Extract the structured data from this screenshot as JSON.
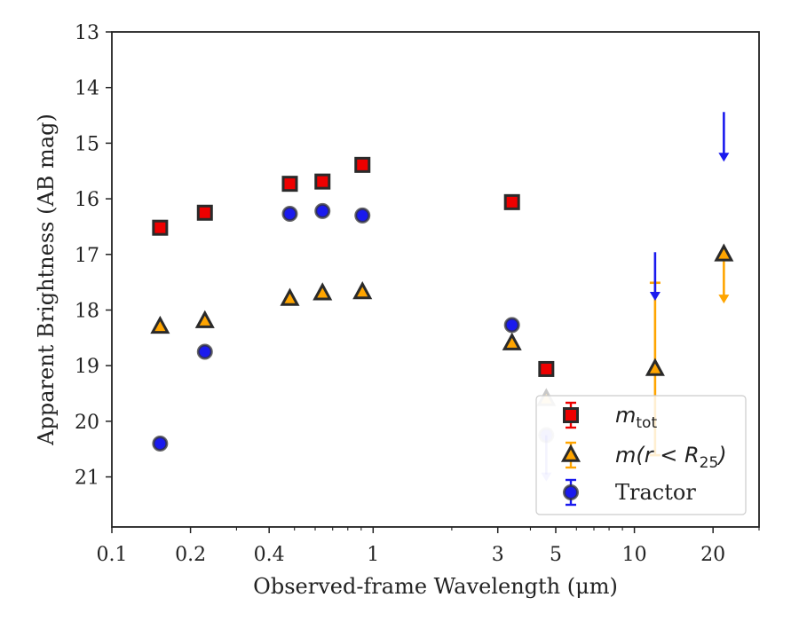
{
  "chart_data": {
    "type": "scatter",
    "title": "",
    "xlabel": "Observed-frame Wavelength (μm)",
    "ylabel": "Apparent Brightness (AB mag)",
    "xscale": "log",
    "xlim": [
      0.1,
      30
    ],
    "ylim": [
      21.9,
      13
    ],
    "y_inverted": true,
    "x_ticks": [
      {
        "value": 0.1,
        "label": "0.1"
      },
      {
        "value": 0.2,
        "label": "0.2"
      },
      {
        "value": 0.4,
        "label": "0.4"
      },
      {
        "value": 1,
        "label": "1"
      },
      {
        "value": 3,
        "label": "3"
      },
      {
        "value": 5,
        "label": "5"
      },
      {
        "value": 10,
        "label": "10"
      },
      {
        "value": 20,
        "label": "20"
      }
    ],
    "y_ticks": [
      13,
      14,
      15,
      16,
      17,
      18,
      19,
      20,
      21
    ],
    "grid": false,
    "legend_position": "lower-right",
    "series": [
      {
        "name": "m_tot",
        "legend_label": {
          "base": "m",
          "sub": "tot",
          "post": ""
        },
        "marker": "square",
        "color": "#ee0000",
        "points": [
          {
            "x": 0.153,
            "y": 16.52
          },
          {
            "x": 0.227,
            "y": 16.25
          },
          {
            "x": 0.48,
            "y": 15.73
          },
          {
            "x": 0.64,
            "y": 15.69
          },
          {
            "x": 0.91,
            "y": 15.39
          },
          {
            "x": 3.4,
            "y": 16.06
          },
          {
            "x": 4.6,
            "y": 19.06
          }
        ],
        "upper_limits": []
      },
      {
        "name": "m(r < R25)",
        "legend_label": {
          "base": "m(r < R",
          "sub": "25",
          "post": ")"
        },
        "marker": "triangle",
        "color": "#ffa500",
        "points": [
          {
            "x": 0.153,
            "y": 18.3
          },
          {
            "x": 0.227,
            "y": 18.2
          },
          {
            "x": 0.48,
            "y": 17.8
          },
          {
            "x": 0.64,
            "y": 17.7
          },
          {
            "x": 0.91,
            "y": 17.68
          },
          {
            "x": 3.4,
            "y": 18.6
          },
          {
            "x": 4.6,
            "y": 19.6
          },
          {
            "x": 12,
            "y": 19.06,
            "err_low": 1.55,
            "err_high": 1.55
          }
        ],
        "upper_limits": [
          {
            "x": 22,
            "y": 17.0,
            "arrow_to": 17.85
          }
        ]
      },
      {
        "name": "Tractor",
        "legend_label": {
          "base": "Tractor",
          "sub": "",
          "post": ""
        },
        "marker": "circle",
        "color": "#1a1aee",
        "points": [
          {
            "x": 0.153,
            "y": 20.4
          },
          {
            "x": 0.227,
            "y": 18.75
          },
          {
            "x": 0.48,
            "y": 16.27
          },
          {
            "x": 0.64,
            "y": 16.22
          },
          {
            "x": 0.91,
            "y": 16.3
          },
          {
            "x": 3.4,
            "y": 18.27
          },
          {
            "x": 4.6,
            "y": 20.25
          }
        ],
        "upper_limits": [
          {
            "x": 4.6,
            "y": 20.25,
            "arrow_to": 21.05
          },
          {
            "x": 12,
            "y": 16.96,
            "arrow_to": 17.8
          },
          {
            "x": 22,
            "y": 14.44,
            "arrow_to": 15.3
          }
        ]
      }
    ]
  }
}
